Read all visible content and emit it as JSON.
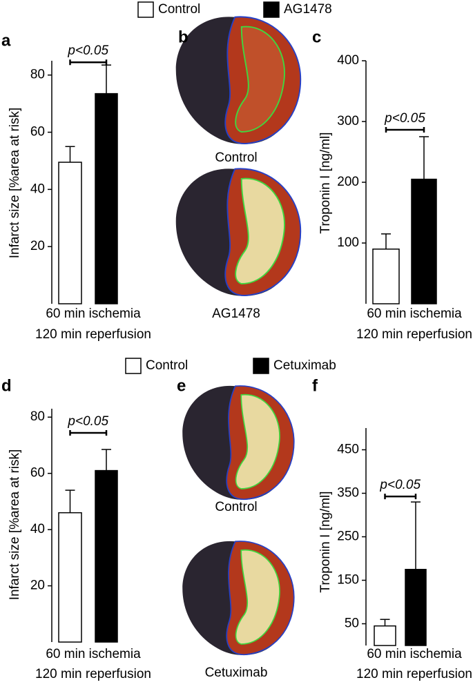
{
  "legends": [
    {
      "items": [
        {
          "name": "Control",
          "color": "#ffffff"
        },
        {
          "name": "AG1478",
          "color": "#000000"
        }
      ]
    },
    {
      "items": [
        {
          "name": "Control",
          "color": "#ffffff"
        },
        {
          "name": "Cetuximab",
          "color": "#000000"
        }
      ]
    }
  ],
  "images": [
    {
      "label": "b",
      "captions": [
        "Control",
        "AG1478"
      ]
    },
    {
      "label": "e",
      "captions": [
        "Control",
        "Cetuximab"
      ]
    }
  ],
  "chart_data": [
    {
      "type": "bar",
      "label": "a",
      "ylabel": "Infarct size [%area at risk]",
      "xlabel": [
        "60 min ischemia",
        "120 min reperfusion"
      ],
      "values": [
        49.5,
        73.5
      ],
      "errors": [
        5.5,
        10
      ],
      "colors": [
        "#ffffff",
        "#000000"
      ],
      "annotation": "p<0.05",
      "ylim": [
        0,
        85
      ],
      "yticks": [
        20,
        40,
        60,
        80
      ]
    },
    {
      "type": "bar",
      "label": "c",
      "ylabel": "Troponin I [ng/ml]",
      "xlabel": [
        "60 min ischemia",
        "120 min reperfusion"
      ],
      "values": [
        90,
        205
      ],
      "errors": [
        25,
        70
      ],
      "colors": [
        "#ffffff",
        "#000000"
      ],
      "annotation": "p<0.05",
      "ylim": [
        0,
        400
      ],
      "yticks": [
        100,
        200,
        300,
        400
      ]
    },
    {
      "type": "bar",
      "label": "d",
      "ylabel": "Infarct size [%area at risk]",
      "xlabel": [
        "60 min ischemia",
        "120 min reperfusion"
      ],
      "values": [
        46,
        61
      ],
      "errors": [
        8,
        7.5
      ],
      "colors": [
        "#ffffff",
        "#000000"
      ],
      "annotation": "p<0.05",
      "ylim": [
        0,
        83
      ],
      "yticks": [
        20,
        40,
        60,
        80
      ]
    },
    {
      "type": "bar",
      "label": "f",
      "ylabel": "Troponin I [ng/ml]",
      "xlabel": [
        "60 min ischemia",
        "120 min reperfusion"
      ],
      "values": [
        45,
        175
      ],
      "errors": [
        15,
        155
      ],
      "colors": [
        "#ffffff",
        "#000000"
      ],
      "annotation": "p<0.05",
      "ylim": [
        0,
        500
      ],
      "yticks": [
        50,
        150,
        250,
        350,
        450
      ]
    }
  ]
}
